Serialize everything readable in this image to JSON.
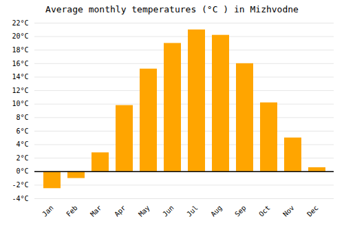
{
  "chart_data": {
    "type": "bar",
    "title": "Average monthly temperatures (°C ) in Mizhvodne",
    "categories": [
      "Jan",
      "Feb",
      "Mar",
      "Apr",
      "May",
      "Jun",
      "Jul",
      "Aug",
      "Sep",
      "Oct",
      "Nov",
      "Dec"
    ],
    "values": [
      -2.5,
      -1.0,
      2.8,
      9.8,
      15.2,
      19.0,
      21.0,
      20.2,
      16.0,
      10.2,
      5.0,
      0.6
    ],
    "color": "#FFA500",
    "ylim": [
      -4,
      22
    ],
    "yticks": [
      {
        "value": -4,
        "label": "-4°C"
      },
      {
        "value": -2,
        "label": "-2°C"
      },
      {
        "value": 0,
        "label": "0°C"
      },
      {
        "value": 2,
        "label": "2°C"
      },
      {
        "value": 4,
        "label": "4°C"
      },
      {
        "value": 6,
        "label": "6°C"
      },
      {
        "value": 8,
        "label": "8°C"
      },
      {
        "value": 10,
        "label": "10°C"
      },
      {
        "value": 12,
        "label": "12°C"
      },
      {
        "value": 14,
        "label": "14°C"
      },
      {
        "value": 16,
        "label": "16°C"
      },
      {
        "value": 18,
        "label": "18°C"
      },
      {
        "value": 20,
        "label": "20°C"
      },
      {
        "value": 22,
        "label": "22°C"
      }
    ],
    "grid": true
  }
}
